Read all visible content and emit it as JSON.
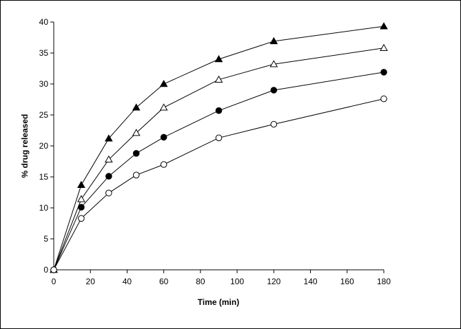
{
  "chart_data": {
    "type": "line",
    "title": "",
    "xlabel": "Time (min)",
    "ylabel": "% drug released",
    "xlim": [
      0,
      180
    ],
    "ylim": [
      0,
      40
    ],
    "xticks": [
      0,
      20,
      40,
      60,
      80,
      100,
      120,
      140,
      160,
      180
    ],
    "yticks": [
      0,
      5,
      10,
      15,
      20,
      25,
      30,
      35,
      40
    ],
    "grid": false,
    "legend": "none",
    "x": [
      0,
      15,
      30,
      45,
      60,
      90,
      120,
      180
    ],
    "series": [
      {
        "marker": "filled-triangle",
        "values": [
          0,
          13.7,
          21.2,
          26.2,
          30.0,
          34.0,
          36.9,
          39.3
        ]
      },
      {
        "marker": "open-triangle",
        "values": [
          0,
          11.4,
          17.8,
          22.1,
          26.2,
          30.7,
          33.2,
          35.8
        ]
      },
      {
        "marker": "filled-circle",
        "values": [
          0,
          10.1,
          15.1,
          18.8,
          21.4,
          25.7,
          29.0,
          31.9
        ]
      },
      {
        "marker": "open-circle",
        "values": [
          0,
          8.3,
          12.4,
          15.3,
          17.0,
          21.3,
          23.5,
          27.6
        ]
      }
    ]
  }
}
